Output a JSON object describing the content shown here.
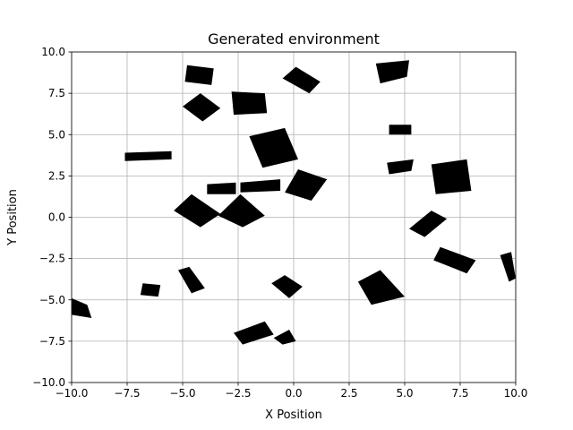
{
  "chart_data": {
    "type": "scatter",
    "title": "Generated environment",
    "xlabel": "X Position",
    "ylabel": "Y Position",
    "xlim": [
      -10,
      10
    ],
    "ylim": [
      -10,
      10
    ],
    "xticks": [
      -10.0,
      -7.5,
      -5.0,
      -2.5,
      0.0,
      2.5,
      5.0,
      7.5,
      10.0
    ],
    "yticks": [
      -10.0,
      -7.5,
      -5.0,
      -2.5,
      0.0,
      2.5,
      5.0,
      7.5,
      10.0
    ],
    "xtick_labels": [
      "−10.0",
      "−7.5",
      "−5.0",
      "−2.5",
      "0.0",
      "2.5",
      "5.0",
      "7.5",
      "10.0"
    ],
    "ytick_labels": [
      "−10.0",
      "−7.5",
      "−5.0",
      "−2.5",
      "0.0",
      "2.5",
      "5.0",
      "7.5",
      "10.0"
    ],
    "grid": true,
    "fill_color": "#000000",
    "grid_color": "#b0b0b0",
    "obstacles": [
      {
        "points": [
          [
            -4.8,
            9.2
          ],
          [
            -3.6,
            9.0
          ],
          [
            -3.7,
            8.0
          ],
          [
            -4.9,
            8.2
          ]
        ]
      },
      {
        "points": [
          [
            -5.0,
            6.7
          ],
          [
            -4.2,
            7.5
          ],
          [
            -3.3,
            6.6
          ],
          [
            -4.1,
            5.8
          ]
        ]
      },
      {
        "points": [
          [
            -2.8,
            7.6
          ],
          [
            -1.3,
            7.5
          ],
          [
            -1.2,
            6.3
          ],
          [
            -2.7,
            6.2
          ]
        ]
      },
      {
        "points": [
          [
            0.1,
            9.1
          ],
          [
            1.2,
            8.2
          ],
          [
            0.7,
            7.5
          ],
          [
            -0.5,
            8.4
          ]
        ]
      },
      {
        "points": [
          [
            -2.0,
            4.9
          ],
          [
            -0.4,
            5.4
          ],
          [
            0.2,
            3.5
          ],
          [
            -1.4,
            3.0
          ]
        ]
      },
      {
        "points": [
          [
            3.7,
            9.3
          ],
          [
            5.2,
            9.5
          ],
          [
            5.1,
            8.5
          ],
          [
            3.9,
            8.1
          ]
        ]
      },
      {
        "points": [
          [
            4.3,
            5.6
          ],
          [
            5.3,
            5.6
          ],
          [
            5.3,
            5.0
          ],
          [
            4.3,
            5.0
          ]
        ]
      },
      {
        "points": [
          [
            4.2,
            3.3
          ],
          [
            5.4,
            3.5
          ],
          [
            5.3,
            2.8
          ],
          [
            4.3,
            2.6
          ]
        ]
      },
      {
        "points": [
          [
            6.2,
            3.2
          ],
          [
            7.8,
            3.5
          ],
          [
            8.0,
            1.6
          ],
          [
            6.4,
            1.4
          ]
        ]
      },
      {
        "points": [
          [
            -7.6,
            3.9
          ],
          [
            -5.5,
            4.0
          ],
          [
            -5.5,
            3.5
          ],
          [
            -7.6,
            3.4
          ]
        ]
      },
      {
        "points": [
          [
            -3.9,
            2.0
          ],
          [
            -2.6,
            2.1
          ],
          [
            -2.6,
            1.4
          ],
          [
            -3.9,
            1.4
          ]
        ]
      },
      {
        "points": [
          [
            -2.4,
            2.1
          ],
          [
            -0.6,
            2.3
          ],
          [
            -0.6,
            1.6
          ],
          [
            -2.4,
            1.5
          ]
        ]
      },
      {
        "points": [
          [
            0.2,
            2.9
          ],
          [
            1.5,
            2.3
          ],
          [
            0.8,
            1.0
          ],
          [
            -0.4,
            1.5
          ]
        ]
      },
      {
        "points": [
          [
            -5.4,
            0.4
          ],
          [
            -4.6,
            1.4
          ],
          [
            -3.3,
            0.2
          ],
          [
            -4.2,
            -0.6
          ]
        ]
      },
      {
        "points": [
          [
            -3.4,
            0.1
          ],
          [
            -2.4,
            1.4
          ],
          [
            -1.3,
            0.1
          ],
          [
            -2.3,
            -0.6
          ]
        ]
      },
      {
        "points": [
          [
            6.2,
            0.4
          ],
          [
            6.9,
            -0.1
          ],
          [
            5.9,
            -1.2
          ],
          [
            5.2,
            -0.7
          ]
        ]
      },
      {
        "points": [
          [
            6.6,
            -1.8
          ],
          [
            8.2,
            -2.6
          ],
          [
            7.8,
            -3.4
          ],
          [
            6.3,
            -2.6
          ]
        ]
      },
      {
        "points": [
          [
            9.3,
            -2.3
          ],
          [
            9.8,
            -2.1
          ],
          [
            10.0,
            -3.7
          ],
          [
            9.7,
            -3.9
          ]
        ]
      },
      {
        "points": [
          [
            3.9,
            -3.2
          ],
          [
            5.0,
            -4.8
          ],
          [
            3.5,
            -5.3
          ],
          [
            2.9,
            -3.9
          ]
        ]
      },
      {
        "points": [
          [
            -6.8,
            -4.0
          ],
          [
            -6.0,
            -4.1
          ],
          [
            -6.1,
            -4.8
          ],
          [
            -6.9,
            -4.7
          ]
        ]
      },
      {
        "points": [
          [
            -5.2,
            -3.2
          ],
          [
            -4.7,
            -3.0
          ],
          [
            -4.0,
            -4.3
          ],
          [
            -4.6,
            -4.6
          ]
        ]
      },
      {
        "points": [
          [
            -1.0,
            -4.0
          ],
          [
            -0.4,
            -3.5
          ],
          [
            0.4,
            -4.2
          ],
          [
            -0.2,
            -4.9
          ]
        ]
      },
      {
        "points": [
          [
            -10.0,
            -4.9
          ],
          [
            -9.3,
            -5.3
          ],
          [
            -9.1,
            -6.1
          ],
          [
            -10.0,
            -5.9
          ]
        ]
      },
      {
        "points": [
          [
            -2.7,
            -7.0
          ],
          [
            -1.3,
            -6.3
          ],
          [
            -0.9,
            -7.1
          ],
          [
            -2.3,
            -7.7
          ]
        ]
      },
      {
        "points": [
          [
            -0.9,
            -7.3
          ],
          [
            -0.2,
            -6.8
          ],
          [
            0.1,
            -7.5
          ],
          [
            -0.5,
            -7.7
          ]
        ]
      }
    ]
  }
}
